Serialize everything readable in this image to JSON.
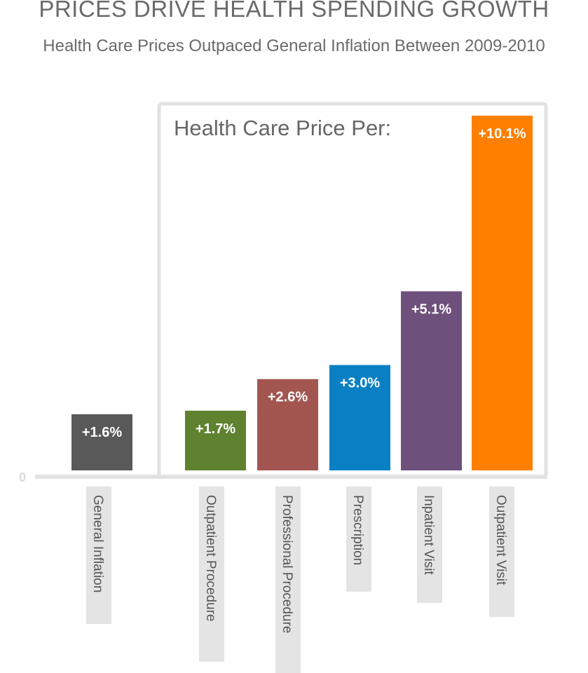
{
  "title": "PRICES DRIVE HEALTH SPENDING GROWTH",
  "subtitle": "Health Care Prices Outpaced General Inflation Between 2009-2010",
  "chart_data": {
    "type": "bar",
    "title": "PRICES DRIVE HEALTH SPENDING GROWTH",
    "subtitle": "Health Care Prices Outpaced General Inflation Between 2009-2010",
    "group_label": "Health Care Price Per:",
    "zero_label": "0",
    "ylim": [
      0,
      10.1
    ],
    "grid": false,
    "categories": [
      "General Inflation",
      "Outpatient Procedure",
      "Professional Procedure",
      "Prescription",
      "Inpatient Visit",
      "Outpatient Visit"
    ],
    "values": [
      1.6,
      1.7,
      2.6,
      3.0,
      5.1,
      10.1
    ],
    "value_labels": [
      "+1.6%",
      "+1.7%",
      "+2.6%",
      "+3.0%",
      "+5.1%",
      "+10.1%"
    ],
    "colors": [
      "#595959",
      "#5e8230",
      "#a35650",
      "#0a80c4",
      "#6e507c",
      "#ff7f00"
    ],
    "grouped_categories": [
      "Outpatient Procedure",
      "Professional Procedure",
      "Prescription",
      "Inpatient Visit",
      "Outpatient Visit"
    ]
  }
}
